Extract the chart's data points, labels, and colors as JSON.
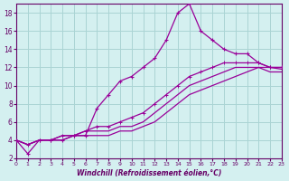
{
  "xlabel": "Windchill (Refroidissement éolien,°C)",
  "background_color": "#d4f0f0",
  "grid_color": "#aad4d4",
  "line_color": "#990099",
  "xlim": [
    0,
    23
  ],
  "ylim": [
    2,
    19
  ],
  "xticks": [
    0,
    1,
    2,
    3,
    4,
    5,
    6,
    7,
    8,
    9,
    10,
    11,
    12,
    13,
    14,
    15,
    16,
    17,
    18,
    19,
    20,
    21,
    22,
    23
  ],
  "yticks": [
    2,
    4,
    6,
    8,
    10,
    12,
    14,
    16,
    18
  ],
  "series1_x": [
    0,
    1,
    2,
    3,
    4,
    5,
    6,
    7,
    8,
    9,
    10,
    11,
    12,
    13,
    14,
    15,
    16,
    17,
    18,
    19,
    20,
    21,
    22,
    23
  ],
  "series1_y": [
    4,
    2.5,
    4,
    4,
    4,
    4.5,
    4.5,
    7.5,
    9,
    10.5,
    11,
    12,
    13,
    15,
    18,
    19,
    16,
    15,
    14,
    13.5,
    13.5,
    12.5,
    12,
    12
  ],
  "series2_x": [
    0,
    1,
    2,
    3,
    4,
    5,
    6,
    7,
    8,
    9,
    10,
    11,
    12,
    13,
    14,
    15,
    16,
    17,
    18,
    19,
    20,
    21,
    22,
    23
  ],
  "series2_y": [
    4,
    3.5,
    4,
    4,
    4.5,
    4.5,
    5,
    5.5,
    5.5,
    6,
    6.5,
    7,
    8,
    9,
    10,
    11,
    11.5,
    12,
    12.5,
    12.5,
    12.5,
    12.5,
    12,
    12
  ],
  "series3_x": [
    0,
    1,
    2,
    3,
    4,
    5,
    6,
    7,
    8,
    9,
    10,
    11,
    12,
    13,
    14,
    15,
    16,
    17,
    18,
    19,
    20,
    21,
    22,
    23
  ],
  "series3_y": [
    4,
    3.5,
    4,
    4,
    4.5,
    4.5,
    5,
    5,
    5,
    5.5,
    5.5,
    6,
    7,
    8,
    9,
    10,
    10.5,
    11,
    11.5,
    12,
    12,
    12,
    11.5,
    11.5
  ],
  "series4_x": [
    0,
    1,
    2,
    3,
    4,
    5,
    6,
    7,
    8,
    9,
    10,
    11,
    12,
    13,
    14,
    15,
    16,
    17,
    18,
    19,
    20,
    21,
    22,
    23
  ],
  "series4_y": [
    4,
    3.5,
    4,
    4,
    4,
    4.5,
    4.5,
    4.5,
    4.5,
    5,
    5,
    5.5,
    6,
    7,
    8,
    9,
    9.5,
    10,
    10.5,
    11,
    11.5,
    12,
    12,
    11.8
  ]
}
